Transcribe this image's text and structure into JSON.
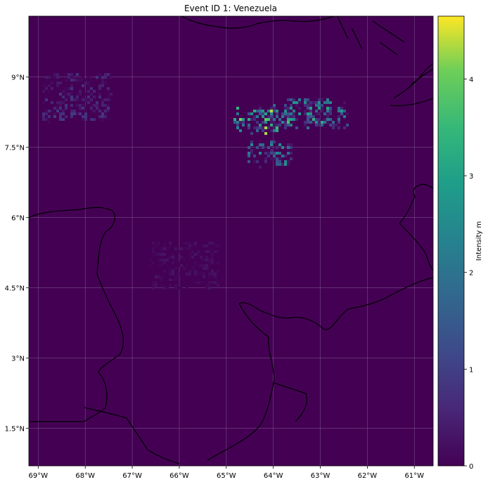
{
  "title": "Event ID 1: Venezuela",
  "chart_data": {
    "type": "heatmap",
    "title": "Event ID 1: Venezuela",
    "x_ticks": [
      "69°W",
      "68°W",
      "67°W",
      "66°W",
      "65°W",
      "64°W",
      "63°W",
      "62°W",
      "61°W"
    ],
    "x_tick_values": [
      -69,
      -68,
      -67,
      -66,
      -65,
      -64,
      -63,
      -62,
      -61
    ],
    "y_ticks": [
      "9°N",
      "7.5°N",
      "6°N",
      "4.5°N",
      "3°N",
      "1.5°N"
    ],
    "y_tick_values": [
      9,
      7.5,
      6,
      4.5,
      3,
      1.5
    ],
    "xlim": [
      -69.2,
      -60.6
    ],
    "ylim": [
      0.7,
      10.3
    ],
    "grid": true,
    "colorbar": {
      "label": "Intensity m",
      "ticks": [
        "0",
        "1",
        "2",
        "3",
        "4"
      ],
      "tick_values": [
        0,
        1,
        2,
        3,
        4
      ],
      "range": [
        0,
        4.65
      ],
      "colormap": "viridis"
    },
    "colors": {
      "background": "#440154",
      "grid": "#8a6a9a",
      "coastline": "#000000"
    },
    "hotspots": [
      {
        "lon": -64.4,
        "lat": 8.1,
        "max": 4.4
      },
      {
        "lon": -64.0,
        "lat": 8.15,
        "max": 3.8
      },
      {
        "lon": -63.3,
        "lat": 8.3,
        "max": 3.5
      },
      {
        "lon": -64.1,
        "lat": 7.4,
        "max": 2.6
      },
      {
        "lon": -62.9,
        "lat": 8.2,
        "max": 3.0
      }
    ],
    "low_areas": [
      {
        "lon": -68.2,
        "lat": 8.6,
        "max": 0.9
      },
      {
        "lon": -65.9,
        "lat": 5.0,
        "max": 0.3
      }
    ]
  }
}
